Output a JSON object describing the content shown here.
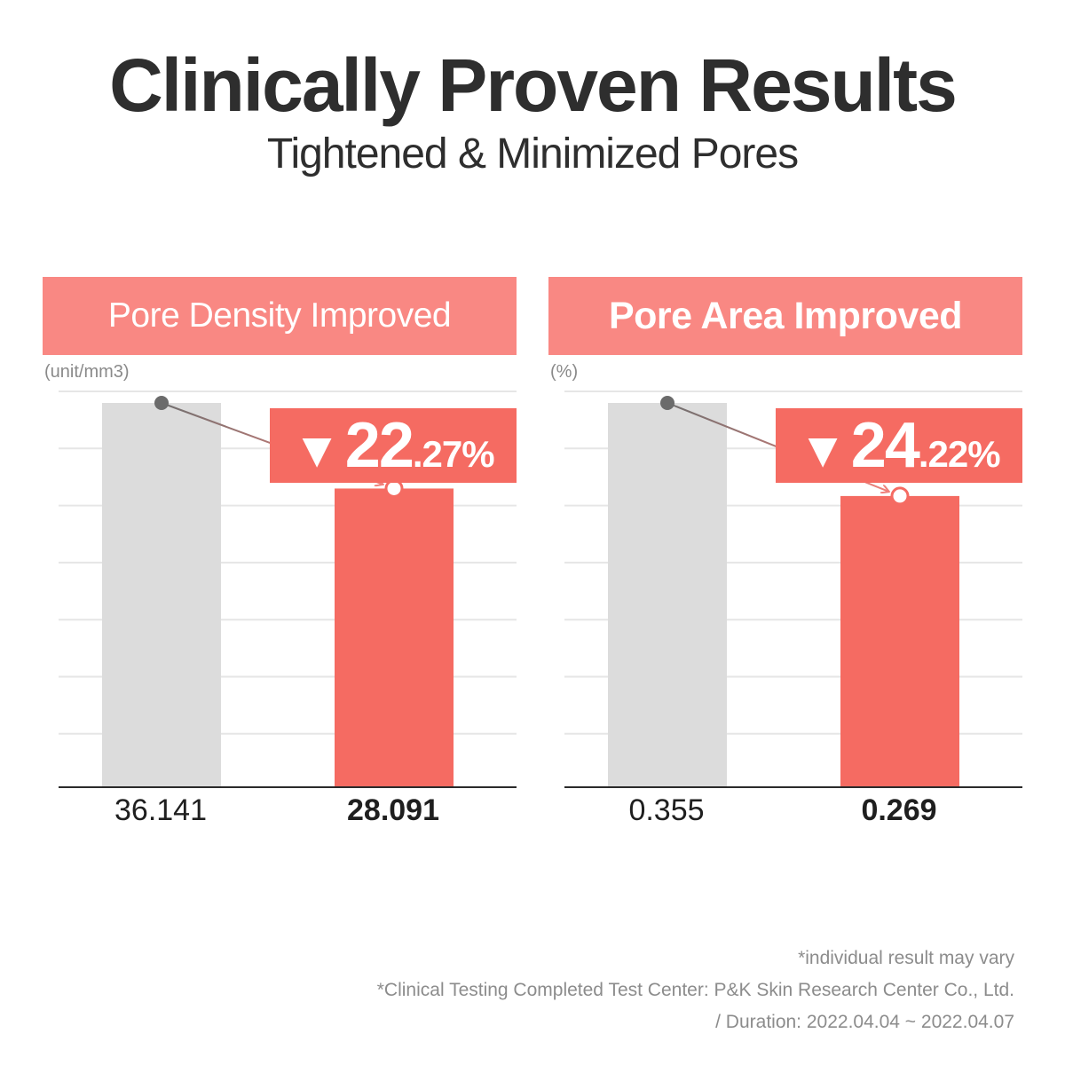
{
  "header": {
    "title": "Clinically Proven Results",
    "subtitle": "Tightened & Minimized Pores"
  },
  "colors": {
    "banner": "#f98883",
    "badge": "#f56b62",
    "before_bar": "#dcdcdc",
    "after_bar": "#f56b62",
    "grid": "#e6e6e6"
  },
  "chart_data": [
    {
      "type": "bar",
      "title": "Pore Density Improved",
      "ylabel": "(unit/mm3)",
      "values": [
        36.141,
        28.091
      ],
      "value_labels": [
        "36.141",
        "28.091"
      ],
      "change": {
        "prefix": "▼",
        "whole": "22",
        "fraction": ".27%"
      },
      "ylim": [
        0,
        36.141
      ],
      "grid": true
    },
    {
      "type": "bar",
      "title": "Pore Area Improved",
      "ylabel": "(%)",
      "values": [
        0.355,
        0.269
      ],
      "value_labels": [
        "0.355",
        "0.269"
      ],
      "change": {
        "prefix": "▼",
        "whole": "24",
        "fraction": ".22%"
      },
      "ylim": [
        0,
        0.355
      ],
      "grid": true
    }
  ],
  "footnotes": [
    "*individual result may vary",
    "*Clinical Testing Completed Test Center: P&K Skin Research Center Co., Ltd.",
    "/ Duration: 2022.04.04 ~ 2022.04.07"
  ]
}
